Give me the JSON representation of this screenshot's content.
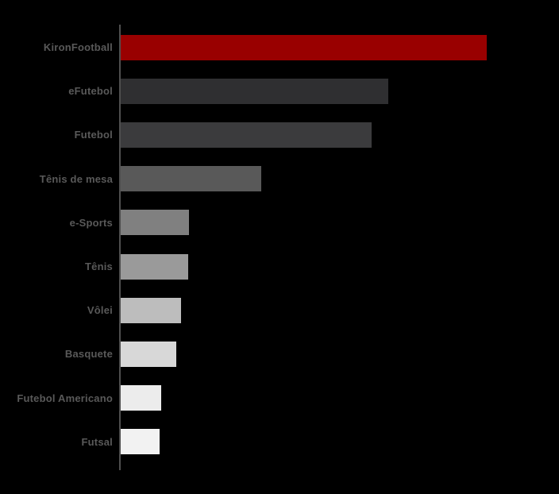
{
  "chart_data": {
    "type": "bar",
    "orientation": "horizontal",
    "title": "",
    "xlabel": "",
    "ylabel": "",
    "categories": [
      "KironFootball",
      "eFutebol",
      "Futebol",
      "Tênis de mesa",
      "e-Sports",
      "Tênis",
      "Vôlei",
      "Basquete",
      "Futebol Americano",
      "Futsal"
    ],
    "values": [
      100,
      73,
      68.5,
      38.5,
      18.7,
      18.4,
      16.5,
      15.2,
      11.1,
      10.6
    ],
    "xlim": [
      0,
      100
    ],
    "value_axis_ticks_shown": false,
    "grid": false,
    "legend": "none",
    "bar_colors": [
      "#990000",
      "#2f2f31",
      "#3b3b3d",
      "#595959",
      "#808080",
      "#9a9a9a",
      "#bdbdbd",
      "#d8d8d8",
      "#ececec",
      "#f2f2f2"
    ]
  },
  "style": {
    "background_color": "#000000",
    "label_color": "#595959",
    "axis_line_color": "#4f4f4f",
    "accent_color": "#990000"
  }
}
